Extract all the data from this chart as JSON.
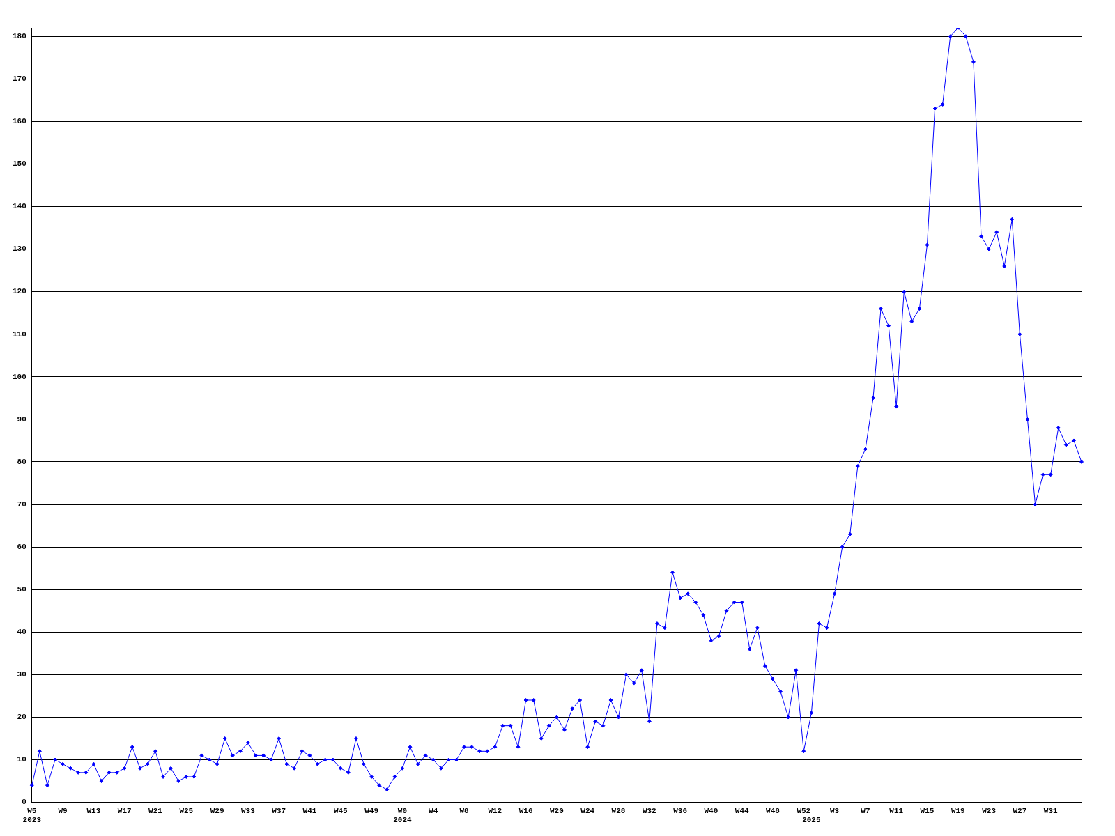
{
  "chart_data": {
    "type": "line",
    "categories": [
      "W5\n2023",
      null,
      null,
      null,
      "W9",
      null,
      null,
      null,
      "W13",
      null,
      null,
      null,
      "W17",
      null,
      null,
      null,
      "W21",
      null,
      null,
      null,
      "W25",
      null,
      null,
      null,
      "W29",
      null,
      null,
      null,
      "W33",
      null,
      null,
      null,
      "W37",
      null,
      null,
      null,
      "W41",
      null,
      null,
      null,
      "W45",
      null,
      null,
      null,
      "W49",
      null,
      null,
      null,
      "W0\n2024",
      null,
      null,
      null,
      "W4",
      null,
      null,
      null,
      "W8",
      null,
      null,
      null,
      "W12",
      null,
      null,
      null,
      "W16",
      null,
      null,
      null,
      "W20",
      null,
      null,
      null,
      "W24",
      null,
      null,
      null,
      "W28",
      null,
      null,
      null,
      "W32",
      null,
      null,
      null,
      "W36",
      null,
      null,
      null,
      "W40",
      null,
      null,
      null,
      "W44",
      null,
      null,
      null,
      "W48",
      null,
      null,
      null,
      "W52",
      "\n2025",
      null,
      null,
      "W3",
      null,
      null,
      null,
      "W7",
      null,
      null,
      null,
      "W11",
      null,
      null,
      null,
      "W15",
      null,
      null,
      null,
      "W19",
      null,
      null,
      null,
      "W23",
      null,
      null,
      null,
      "W27",
      null,
      null,
      null,
      "W31",
      null,
      null,
      null,
      null
    ],
    "series": [
      {
        "color": "#0000ff",
        "values": [
          4,
          12,
          4,
          10,
          9,
          8,
          7,
          7,
          9,
          5,
          7,
          7,
          8,
          13,
          8,
          9,
          12,
          6,
          8,
          5,
          6,
          6,
          11,
          10,
          9,
          15,
          11,
          12,
          14,
          11,
          11,
          10,
          15,
          9,
          8,
          12,
          11,
          9,
          10,
          10,
          8,
          7,
          15,
          9,
          6,
          4,
          3,
          6,
          8,
          13,
          9,
          11,
          10,
          8,
          10,
          10,
          13,
          13,
          12,
          12,
          13,
          18,
          18,
          13,
          24,
          24,
          15,
          18,
          20,
          17,
          22,
          24,
          13,
          19,
          18,
          24,
          20,
          30,
          28,
          31,
          19,
          42,
          41,
          54,
          48,
          49,
          47,
          44,
          38,
          39,
          45,
          47,
          47,
          36,
          41,
          32,
          29,
          26,
          20,
          31,
          12,
          21,
          42,
          41,
          49,
          60,
          63,
          79,
          83,
          95,
          116,
          112,
          93,
          120,
          113,
          116,
          131,
          163,
          164,
          180,
          182,
          180,
          174,
          133,
          130,
          134,
          126,
          137,
          110,
          90,
          70,
          77,
          77,
          88,
          84,
          85,
          80
        ]
      }
    ],
    "ylim": [
      0,
      182
    ],
    "yticks": [
      0,
      10,
      20,
      30,
      40,
      50,
      60,
      70,
      80,
      90,
      100,
      110,
      120,
      130,
      140,
      150,
      160,
      170,
      180
    ],
    "grid": "y",
    "legend": false,
    "marker": "diamond",
    "line_style": "solid"
  }
}
